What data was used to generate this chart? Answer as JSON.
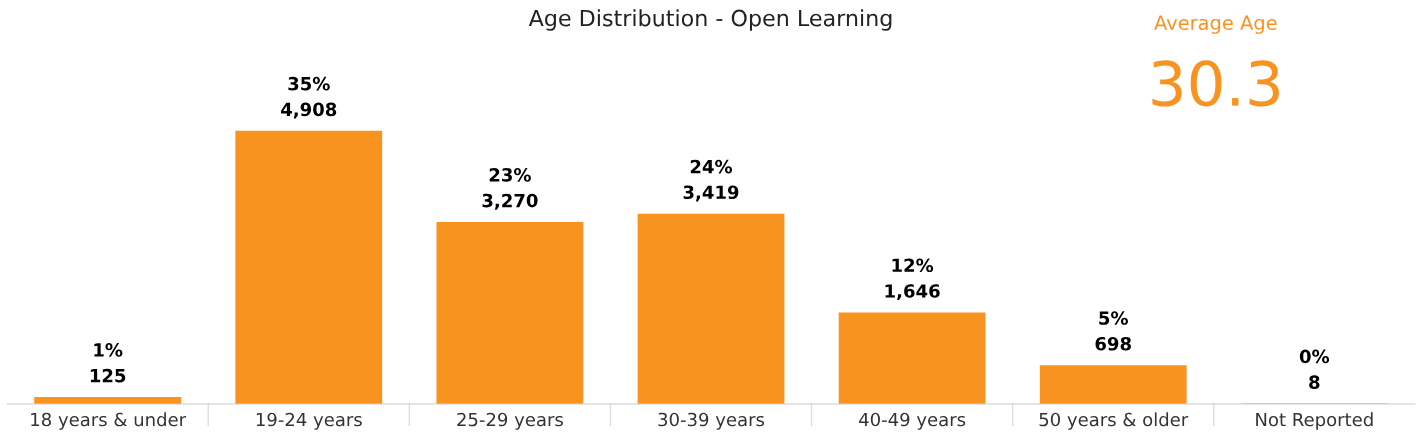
{
  "chart_data": {
    "type": "bar",
    "title": "Age Distribution - Open Learning",
    "categories": [
      "18 years & under",
      "19-24 years",
      "25-29 years",
      "30-39 years",
      "40-49 years",
      "50 years & older",
      "Not Reported"
    ],
    "values": [
      125,
      4908,
      3270,
      3419,
      1646,
      698,
      8
    ],
    "value_labels": [
      "1%\n125",
      "35%\n4,908",
      "23%\n3,270",
      "24%\n3,419",
      "12%\n1,646",
      "5%\n698",
      "0%\n8"
    ],
    "color": "#f7931e",
    "annotations": [
      "Average Age",
      "30.3"
    ],
    "grid": false,
    "legend": false
  }
}
